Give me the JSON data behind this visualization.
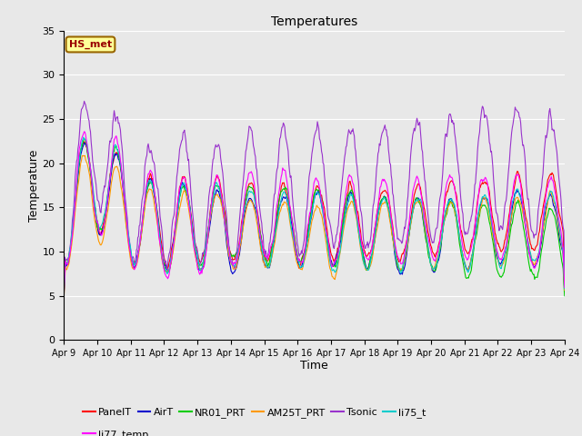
{
  "title": "Temperatures",
  "xlabel": "Time",
  "ylabel": "Temperature",
  "ylim": [
    0,
    35
  ],
  "yticks": [
    0,
    5,
    10,
    15,
    20,
    25,
    30,
    35
  ],
  "x_labels": [
    "Apr 9",
    "Apr 10",
    "Apr 11",
    "Apr 12",
    "Apr 13",
    "Apr 14",
    "Apr 15",
    "Apr 16",
    "Apr 17",
    "Apr 18",
    "Apr 19",
    "Apr 20",
    "Apr 21",
    "Apr 22",
    "Apr 23",
    "Apr 24"
  ],
  "series_names": [
    "PanelT",
    "AirT",
    "NR01_PRT",
    "AM25T_PRT",
    "Tsonic",
    "li75_t",
    "li77_temp"
  ],
  "series_colors": [
    "#ff0000",
    "#0000cc",
    "#00cc00",
    "#ff9900",
    "#9933cc",
    "#00cccc",
    "#ff00ff"
  ],
  "annotation_text": "HS_met",
  "annotation_bg": "#ffff99",
  "annotation_border": "#996600",
  "annotation_text_color": "#990000",
  "fig_bg": "#e8e8e8",
  "plot_bg": "#e8e8e8",
  "n_points": 720
}
